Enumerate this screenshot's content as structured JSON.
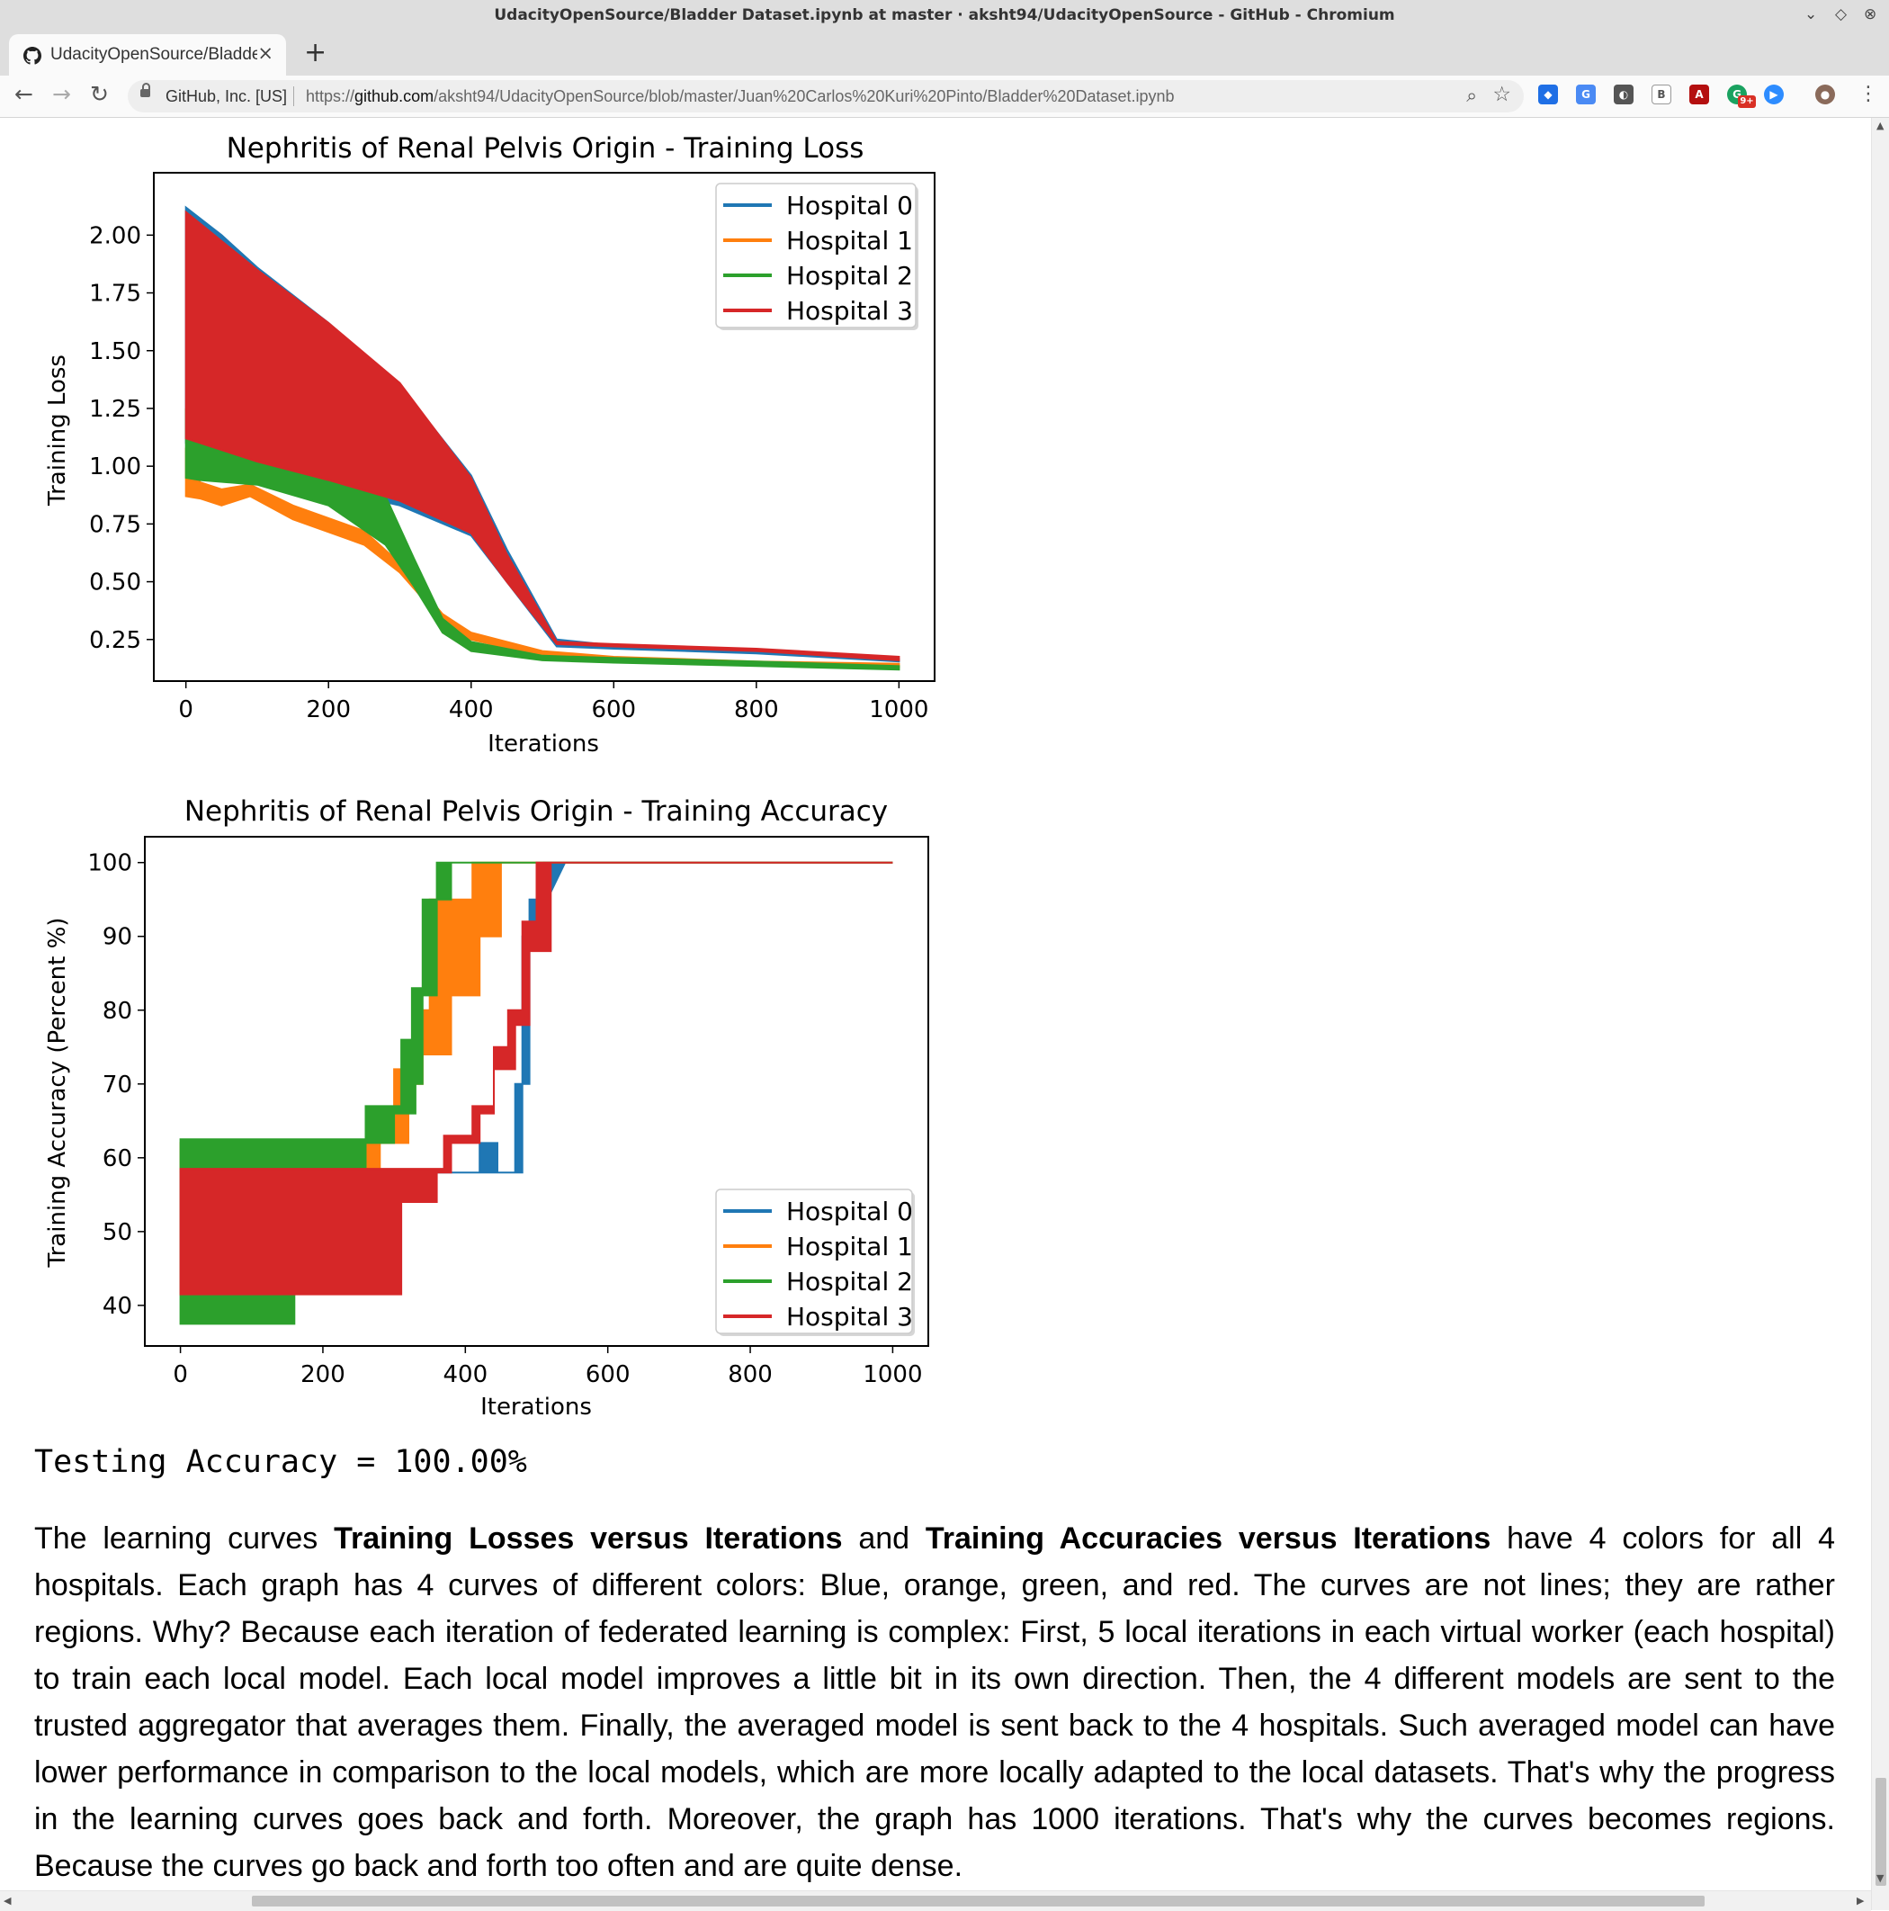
{
  "window": {
    "title": "UdacityOpenSource/Bladder Dataset.ipynb at master · aksht94/UdacityOpenSource - GitHub - Chromium"
  },
  "tab": {
    "title": "UdacityOpenSource/Bladder",
    "close": "×",
    "new_tab": "+"
  },
  "omnibox": {
    "org": "GitHub, Inc. [US]",
    "url_scheme": "https://",
    "url_host": "github.com",
    "url_path": "/aksht94/UdacityOpenSource/blob/master/Juan%20Carlos%20Kuri%20Pinto/Bladder%20Dataset.ipynb"
  },
  "extensions": {
    "badge": "9+"
  },
  "chart_data": [
    {
      "type": "area",
      "title": "Nephritis of Renal Pelvis Origin - Training Loss",
      "xlabel": "Iterations",
      "ylabel": "Training Loss",
      "xlim": [
        -45,
        1050
      ],
      "ylim": [
        0.07,
        2.27
      ],
      "xticks": [
        0,
        200,
        400,
        600,
        800,
        1000
      ],
      "yticks": [
        0.25,
        0.5,
        0.75,
        1.0,
        1.25,
        1.5,
        1.75,
        2.0
      ],
      "xticklabels": [
        "0",
        "200",
        "400",
        "600",
        "800",
        "1000"
      ],
      "yticklabels": [
        "0.25",
        "0.50",
        "0.75",
        "1.00",
        "1.25",
        "1.50",
        "1.75",
        "2.00"
      ],
      "legend_position": "upper right",
      "series": [
        {
          "name": "Hospital 0",
          "color": "#1f77b4",
          "upper": [
            [
              0,
              2.12
            ],
            [
              50,
              2.0
            ],
            [
              100,
              1.86
            ],
            [
              200,
              1.62
            ],
            [
              300,
              1.35
            ],
            [
              400,
              0.96
            ],
            [
              450,
              0.64
            ],
            [
              520,
              0.25
            ],
            [
              600,
              0.225
            ],
            [
              800,
              0.2
            ],
            [
              1000,
              0.165
            ]
          ],
          "lower": [
            [
              0,
              1.1
            ],
            [
              100,
              0.98
            ],
            [
              200,
              0.9
            ],
            [
              300,
              0.83
            ],
            [
              400,
              0.7
            ],
            [
              450,
              0.5
            ],
            [
              520,
              0.22
            ],
            [
              600,
              0.21
            ],
            [
              800,
              0.19
            ],
            [
              1000,
              0.155
            ]
          ]
        },
        {
          "name": "Hospital 1",
          "color": "#ff7f0e",
          "upper": [
            [
              0,
              1.08
            ],
            [
              20,
              0.93
            ],
            [
              50,
              0.9
            ],
            [
              90,
              0.92
            ],
            [
              150,
              0.83
            ],
            [
              250,
              0.72
            ],
            [
              300,
              0.58
            ],
            [
              360,
              0.36
            ],
            [
              400,
              0.28
            ],
            [
              500,
              0.2
            ],
            [
              600,
              0.175
            ],
            [
              800,
              0.155
            ],
            [
              1000,
              0.145
            ]
          ],
          "lower": [
            [
              0,
              0.87
            ],
            [
              20,
              0.86
            ],
            [
              50,
              0.83
            ],
            [
              90,
              0.87
            ],
            [
              150,
              0.77
            ],
            [
              250,
              0.66
            ],
            [
              300,
              0.54
            ],
            [
              360,
              0.33
            ],
            [
              400,
              0.25
            ],
            [
              500,
              0.18
            ],
            [
              600,
              0.16
            ],
            [
              800,
              0.145
            ],
            [
              1000,
              0.13
            ]
          ]
        },
        {
          "name": "Hospital 2",
          "color": "#2ca02c",
          "upper": [
            [
              0,
              1.25
            ],
            [
              20,
              1.1
            ],
            [
              100,
              1.05
            ],
            [
              200,
              0.96
            ],
            [
              280,
              0.87
            ],
            [
              320,
              0.6
            ],
            [
              360,
              0.34
            ],
            [
              400,
              0.24
            ],
            [
              500,
              0.18
            ],
            [
              600,
              0.17
            ],
            [
              800,
              0.155
            ],
            [
              1000,
              0.135
            ]
          ],
          "lower": [
            [
              0,
              0.95
            ],
            [
              20,
              0.94
            ],
            [
              100,
              0.92
            ],
            [
              200,
              0.83
            ],
            [
              280,
              0.66
            ],
            [
              320,
              0.48
            ],
            [
              360,
              0.28
            ],
            [
              400,
              0.2
            ],
            [
              500,
              0.16
            ],
            [
              600,
              0.15
            ],
            [
              800,
              0.135
            ],
            [
              1000,
              0.12
            ]
          ]
        },
        {
          "name": "Hospital 3",
          "color": "#d62728",
          "upper": [
            [
              0,
              2.1
            ],
            [
              100,
              1.85
            ],
            [
              200,
              1.62
            ],
            [
              300,
              1.36
            ],
            [
              400,
              0.95
            ],
            [
              450,
              0.62
            ],
            [
              520,
              0.24
            ],
            [
              600,
              0.23
            ],
            [
              800,
              0.21
            ],
            [
              1000,
              0.175
            ]
          ],
          "lower": [
            [
              0,
              1.12
            ],
            [
              100,
              1.02
            ],
            [
              200,
              0.94
            ],
            [
              300,
              0.85
            ],
            [
              400,
              0.71
            ],
            [
              450,
              0.5
            ],
            [
              520,
              0.23
            ],
            [
              600,
              0.22
            ],
            [
              800,
              0.2
            ],
            [
              1000,
              0.16
            ]
          ]
        }
      ]
    },
    {
      "type": "area",
      "title": "Nephritis of Renal Pelvis Origin - Training Accuracy",
      "xlabel": "Iterations",
      "ylabel": "Training Accuracy (Percent %)",
      "xlim": [
        -50,
        1050
      ],
      "ylim": [
        34.5,
        103.5
      ],
      "xticks": [
        0,
        200,
        400,
        600,
        800,
        1000
      ],
      "yticks": [
        40,
        50,
        60,
        70,
        80,
        90,
        100
      ],
      "xticklabels": [
        "0",
        "200",
        "400",
        "600",
        "800",
        "1000"
      ],
      "yticklabels": [
        "40",
        "50",
        "60",
        "70",
        "80",
        "90",
        "100"
      ],
      "legend_position": "lower right",
      "series": [
        {
          "name": "Hospital 0",
          "color": "#1f77b4",
          "upper": [
            [
              0,
              58
            ],
            [
              420,
              58
            ],
            [
              420,
              62
            ],
            [
              445,
              62
            ],
            [
              445,
              58
            ],
            [
              480,
              58
            ],
            [
              480,
              70
            ],
            [
              490,
              70
            ],
            [
              490,
              95
            ],
            [
              510,
              95
            ],
            [
              510,
              100
            ],
            [
              1000,
              100
            ]
          ],
          "lower": [
            [
              0,
              58
            ],
            [
              400,
              58
            ],
            [
              400,
              58
            ],
            [
              440,
              58
            ],
            [
              440,
              58
            ],
            [
              470,
              58
            ],
            [
              470,
              70
            ],
            [
              480,
              70
            ],
            [
              480,
              90
            ],
            [
              500,
              90
            ],
            [
              500,
              92
            ],
            [
              540,
              100
            ],
            [
              1000,
              100
            ]
          ]
        },
        {
          "name": "Hospital 1",
          "color": "#ff7f0e",
          "upper": [
            [
              0,
              62
            ],
            [
              260,
              62
            ],
            [
              260,
              66
            ],
            [
              300,
              66
            ],
            [
              300,
              72
            ],
            [
              330,
              72
            ],
            [
              330,
              80
            ],
            [
              350,
              80
            ],
            [
              350,
              95
            ],
            [
              410,
              95
            ],
            [
              410,
              100
            ],
            [
              1000,
              100
            ]
          ],
          "lower": [
            [
              0,
              58
            ],
            [
              280,
              58
            ],
            [
              280,
              62
            ],
            [
              320,
              62
            ],
            [
              320,
              70
            ],
            [
              340,
              70
            ],
            [
              340,
              74
            ],
            [
              380,
              74
            ],
            [
              380,
              82
            ],
            [
              420,
              82
            ],
            [
              420,
              90
            ],
            [
              450,
              90
            ],
            [
              450,
              100
            ],
            [
              1000,
              100
            ]
          ]
        },
        {
          "name": "Hospital 2",
          "color": "#2ca02c",
          "upper": [
            [
              0,
              62.5
            ],
            [
              260,
              62.5
            ],
            [
              260,
              67
            ],
            [
              310,
              67
            ],
            [
              310,
              76
            ],
            [
              325,
              76
            ],
            [
              325,
              83
            ],
            [
              340,
              83
            ],
            [
              340,
              95
            ],
            [
              360,
              95
            ],
            [
              360,
              100
            ],
            [
              1000,
              100
            ]
          ],
          "lower": [
            [
              0,
              37.5
            ],
            [
              160,
              37.5
            ],
            [
              160,
              58
            ],
            [
              260,
              58
            ],
            [
              260,
              62
            ],
            [
              300,
              62
            ],
            [
              300,
              66
            ],
            [
              330,
              66
            ],
            [
              330,
              70
            ],
            [
              340,
              70
            ],
            [
              340,
              82
            ],
            [
              360,
              82
            ],
            [
              360,
              95
            ],
            [
              380,
              95
            ],
            [
              380,
              100
            ],
            [
              1000,
              100
            ]
          ]
        },
        {
          "name": "Hospital 3",
          "color": "#d62728",
          "upper": [
            [
              0,
              58.5
            ],
            [
              370,
              58.5
            ],
            [
              370,
              63
            ],
            [
              410,
              63
            ],
            [
              410,
              67
            ],
            [
              440,
              67
            ],
            [
              440,
              75
            ],
            [
              460,
              75
            ],
            [
              460,
              80
            ],
            [
              480,
              80
            ],
            [
              480,
              92
            ],
            [
              500,
              92
            ],
            [
              500,
              100
            ],
            [
              1000,
              100
            ]
          ],
          "lower": [
            [
              0,
              41.5
            ],
            [
              310,
              41.5
            ],
            [
              310,
              54
            ],
            [
              360,
              54
            ],
            [
              360,
              58
            ],
            [
              380,
              58
            ],
            [
              380,
              62
            ],
            [
              420,
              62
            ],
            [
              420,
              66
            ],
            [
              440,
              66
            ],
            [
              440,
              72
            ],
            [
              470,
              72
            ],
            [
              470,
              78
            ],
            [
              490,
              78
            ],
            [
              490,
              88
            ],
            [
              520,
              88
            ],
            [
              520,
              100
            ],
            [
              1000,
              100
            ]
          ]
        }
      ]
    }
  ],
  "output": {
    "testing_accuracy": "Testing Accuracy = 100.00%"
  },
  "paragraph": {
    "t1": "The learning curves ",
    "b1": "Training Losses versus Iterations",
    "t2": " and ",
    "b2": "Training Accuracies versus Iterations",
    "t3": " have 4 colors for all 4 hospitals. Each graph has 4 curves of different colors: Blue, orange, green, and red. The curves are not lines; they are rather regions. Why? Because each iteration of federated learning is complex: First, 5 local iterations in each virtual worker (each hospital) to train each local model. Each local model improves a little bit in its own direction. Then, the 4 different models are sent to the trusted aggregator that averages them. Finally, the averaged model is sent back to the 4 hospitals. Such averaged model can have lower performance in comparison to the local models, which are more locally adapted to the local datasets. That's why the progress in the learning curves goes back and forth. Moreover, the graph has 1000 iterations. That's why the curves becomes regions. Because the curves go back and forth too often and are quite dense."
  }
}
